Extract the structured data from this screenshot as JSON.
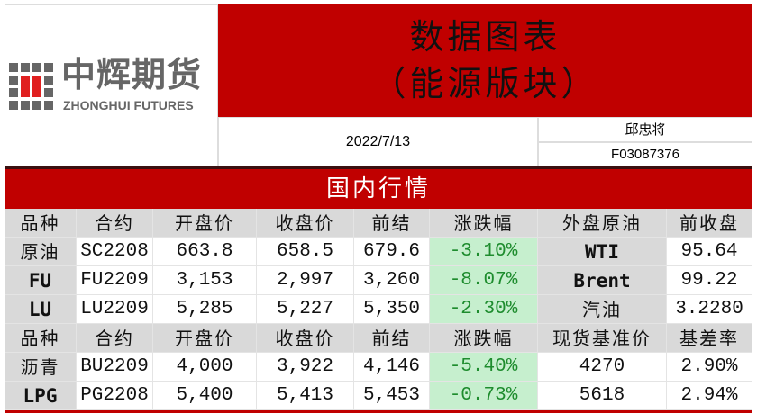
{
  "logo": {
    "cn": "中辉期货",
    "en": "ZHONGHUI FUTURES"
  },
  "title": {
    "line1": "数据图表",
    "line2": "（能源版块）"
  },
  "date": "2022/7/13",
  "analyst": {
    "name": "邱忠将",
    "license": "F03087376"
  },
  "section": "国内行情",
  "colors": {
    "red": "#c00000",
    "green_bg": "#c6efce",
    "green_text": "#1e8c2e",
    "gray": "#d9d9d9"
  },
  "table1": {
    "headers": [
      "品种",
      "合约",
      "开盘价",
      "收盘价",
      "前结",
      "涨跌幅",
      "外盘原油",
      "前收盘"
    ],
    "rows": [
      [
        "原油",
        "SC2208",
        "663.8",
        "658.5",
        "679.6",
        "-3.10%",
        "WTI",
        "95.64"
      ],
      [
        "FU",
        "FU2209",
        "3,153",
        "2,997",
        "3,260",
        "-8.07%",
        "Brent",
        "99.22"
      ],
      [
        "LU",
        "LU2209",
        "5,285",
        "5,227",
        "5,350",
        "-2.30%",
        "汽油",
        "3.2280"
      ]
    ]
  },
  "table2": {
    "headers": [
      "品种",
      "合约",
      "开盘价",
      "收盘价",
      "前结",
      "涨跌幅",
      "现货基准价",
      "基差率"
    ],
    "rows": [
      [
        "沥青",
        "BU2209",
        "4,000",
        "3,922",
        "4,146",
        "-5.40%",
        "4270",
        "2.90%"
      ],
      [
        "LPG",
        "PG2208",
        "5,400",
        "5,413",
        "5,453",
        "-0.73%",
        "5618",
        "2.94%"
      ]
    ]
  }
}
